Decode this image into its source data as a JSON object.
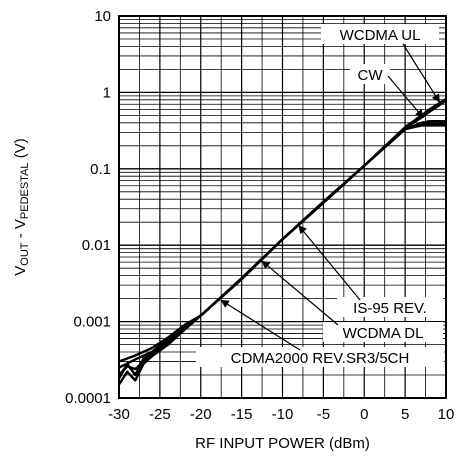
{
  "chart_data": {
    "type": "line",
    "xlabel": "RF INPUT POWER (dBm)",
    "ylabel": {
      "parts": [
        {
          "text": "V",
          "sub": false
        },
        {
          "text": "OUT",
          "sub": true
        },
        {
          "text": " - V",
          "sub": false
        },
        {
          "text": "PEDESTAL",
          "sub": true
        },
        {
          "text": " (V)",
          "sub": false
        }
      ]
    },
    "xlim": [
      -30,
      10
    ],
    "ylim": [
      0.0001,
      10
    ],
    "y_scale": "log",
    "grid": true,
    "x_ticks": [
      -30,
      -25,
      -20,
      -15,
      -10,
      -5,
      0,
      5,
      10
    ],
    "x_tick_labels": [
      "-30",
      "-25",
      "-20",
      "-15",
      "-10",
      "-5",
      "0",
      "5",
      "10"
    ],
    "y_ticks": [
      0.0001,
      0.001,
      0.01,
      0.1,
      1,
      10
    ],
    "y_tick_labels": [
      "0.0001",
      "0.001",
      "0.01",
      "0.1",
      "1",
      "10"
    ],
    "series": [
      {
        "name": "WCDMA UL",
        "x": [
          -30,
          -28,
          -26,
          -24,
          -22,
          -20,
          -15,
          -10,
          -5,
          0,
          5,
          7,
          8,
          9,
          10
        ],
        "y": [
          0.00025,
          0.00032,
          0.0004,
          0.0006,
          0.00085,
          0.0012,
          0.0037,
          0.012,
          0.037,
          0.11,
          0.35,
          0.5,
          0.6,
          0.7,
          0.82
        ]
      },
      {
        "name": "CW",
        "x": [
          -30,
          -28,
          -26,
          -24,
          -22,
          -20,
          -15,
          -10,
          -5,
          0,
          5,
          7,
          8,
          9,
          10
        ],
        "y": [
          0.0003,
          0.00036,
          0.00045,
          0.00062,
          0.0009,
          0.0012,
          0.0037,
          0.012,
          0.037,
          0.11,
          0.34,
          0.47,
          0.56,
          0.66,
          0.78
        ]
      },
      {
        "name": "IS-95 REV.",
        "x": [
          -30,
          -29,
          -28,
          -27,
          -26,
          -24,
          -22,
          -20,
          -15,
          -10,
          -5,
          0,
          5,
          7,
          8,
          10
        ],
        "y": [
          0.00018,
          0.00028,
          0.0002,
          0.00033,
          0.0004,
          0.00055,
          0.0008,
          0.0012,
          0.0036,
          0.012,
          0.036,
          0.11,
          0.33,
          0.4,
          0.42,
          0.42
        ]
      },
      {
        "name": "WCDMA DL",
        "x": [
          -30,
          -29,
          -28,
          -27,
          -26,
          -24,
          -22,
          -20,
          -15,
          -10,
          -5,
          0,
          5,
          7,
          8,
          10
        ],
        "y": [
          0.00015,
          0.00022,
          0.00017,
          0.00028,
          0.00035,
          0.0005,
          0.00078,
          0.0012,
          0.0036,
          0.012,
          0.036,
          0.11,
          0.33,
          0.38,
          0.39,
          0.39
        ]
      },
      {
        "name": "CDMA2000 REV.SR3/5CH",
        "x": [
          -30,
          -29,
          -28,
          -27,
          -26,
          -24,
          -22,
          -20,
          -15,
          -10,
          -5,
          0,
          5,
          7,
          8,
          10
        ],
        "y": [
          0.0002,
          0.00026,
          0.00024,
          0.0003,
          0.00038,
          0.00052,
          0.0008,
          0.0012,
          0.0036,
          0.012,
          0.036,
          0.11,
          0.33,
          0.37,
          0.37,
          0.37
        ]
      }
    ],
    "annotations": [
      {
        "text": "WCDMA UL",
        "points_to": [
          9.2,
          0.75
        ]
      },
      {
        "text": "CW",
        "points_to": [
          7.2,
          0.47
        ]
      },
      {
        "text": "IS-95 REV.",
        "points_to": [
          -8,
          0.018
        ]
      },
      {
        "text": "WCDMA DL",
        "points_to": [
          -12.5,
          0.0062
        ]
      },
      {
        "text": "CDMA2000 REV.SR3/5CH",
        "points_to": [
          -17.5,
          0.0019
        ]
      }
    ]
  }
}
